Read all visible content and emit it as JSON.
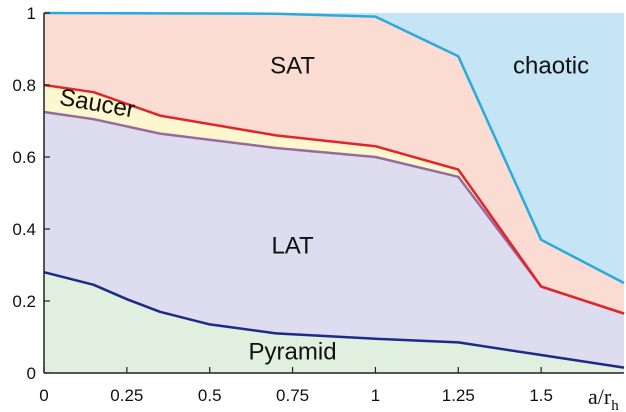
{
  "chart_data": {
    "type": "area",
    "xlabel": "a/r",
    "xlabel_sub": "h",
    "ylabel": "",
    "xlim": [
      0,
      1.75
    ],
    "ylim": [
      0,
      1
    ],
    "x_ticks": [
      "0",
      "0.25",
      "0.5",
      "0.75",
      "1",
      "1.25",
      "1.5"
    ],
    "y_ticks": [
      "0",
      "0.2",
      "0.4",
      "0.6",
      "0.8",
      "1"
    ],
    "regions": [
      {
        "label": "SAT",
        "color": "#fadcd2"
      },
      {
        "label": "chaotic",
        "color": "#c5e4f5"
      },
      {
        "label": "Saucer",
        "color": "#fdf7cf"
      },
      {
        "label": "LAT",
        "color": "#ddddef"
      },
      {
        "label": "Pyramid",
        "color": "#e1efde"
      }
    ],
    "boundaries": [
      {
        "id": "sat-chaotic",
        "color": "#29aadf",
        "points": [
          [
            0,
            1.0
          ],
          [
            0.7,
            0.998
          ],
          [
            1.0,
            0.99
          ],
          [
            1.25,
            0.88
          ],
          [
            1.5,
            0.37
          ],
          [
            1.75,
            0.25
          ]
        ]
      },
      {
        "id": "saucer-sat",
        "color": "#e2242b",
        "points": [
          [
            0,
            0.8
          ],
          [
            0.15,
            0.78
          ],
          [
            0.35,
            0.715
          ],
          [
            0.7,
            0.66
          ],
          [
            1.0,
            0.63
          ],
          [
            1.25,
            0.565
          ],
          [
            1.5,
            0.24
          ],
          [
            1.75,
            0.165
          ]
        ]
      },
      {
        "id": "lat-saucer",
        "color": "#9a6a9a",
        "points": [
          [
            0,
            0.725
          ],
          [
            0.15,
            0.705
          ],
          [
            0.35,
            0.665
          ],
          [
            0.7,
            0.625
          ],
          [
            1.0,
            0.6
          ],
          [
            1.25,
            0.545
          ],
          [
            1.5,
            0.24
          ],
          [
            1.75,
            0.165
          ]
        ]
      },
      {
        "id": "pyramid-lat",
        "color": "#1d2a8a",
        "points": [
          [
            0,
            0.28
          ],
          [
            0.15,
            0.245
          ],
          [
            0.25,
            0.205
          ],
          [
            0.35,
            0.17
          ],
          [
            0.5,
            0.135
          ],
          [
            0.7,
            0.11
          ],
          [
            1.0,
            0.095
          ],
          [
            1.25,
            0.085
          ],
          [
            1.5,
            0.05
          ],
          [
            1.75,
            0.015
          ]
        ]
      }
    ],
    "region_labels": [
      {
        "text": "SAT",
        "x": 0.75,
        "y": 0.85
      },
      {
        "text": "chaotic",
        "x": 1.53,
        "y": 0.85
      },
      {
        "text": "Saucer",
        "x": 0.16,
        "y": 0.745,
        "angle": 10
      },
      {
        "text": "LAT",
        "x": 0.75,
        "y": 0.35
      },
      {
        "text": "Pyramid",
        "x": 0.75,
        "y": 0.055
      }
    ]
  }
}
